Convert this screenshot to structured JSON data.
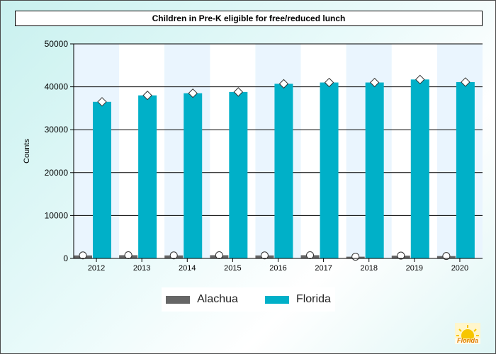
{
  "title": "Children in Pre-K eligible for free/reduced lunch",
  "chart_data": {
    "type": "bar",
    "title": "Children in Pre-K eligible for free/reduced lunch",
    "xlabel": "",
    "ylabel": "Counts",
    "ylim": [
      0,
      50000
    ],
    "yticks": [
      0,
      10000,
      20000,
      30000,
      40000,
      50000
    ],
    "categories": [
      "2012",
      "2013",
      "2014",
      "2015",
      "2016",
      "2017",
      "2018",
      "2019",
      "2020"
    ],
    "series": [
      {
        "name": "Alachua",
        "color": "#666666",
        "marker": "circle",
        "values": [
          700,
          750,
          700,
          750,
          700,
          750,
          400,
          650,
          550
        ]
      },
      {
        "name": "Florida",
        "color": "#00b0c8",
        "marker": "diamond",
        "values": [
          36500,
          38000,
          38500,
          38800,
          40700,
          41000,
          41000,
          41700,
          41100
        ]
      }
    ],
    "grid": true,
    "legend_position": "bottom"
  },
  "legend": {
    "items": [
      {
        "label": "Alachua",
        "color": "#666666"
      },
      {
        "label": "Florida",
        "color": "#00b0c8"
      }
    ]
  },
  "logo": {
    "text": "Florida"
  }
}
